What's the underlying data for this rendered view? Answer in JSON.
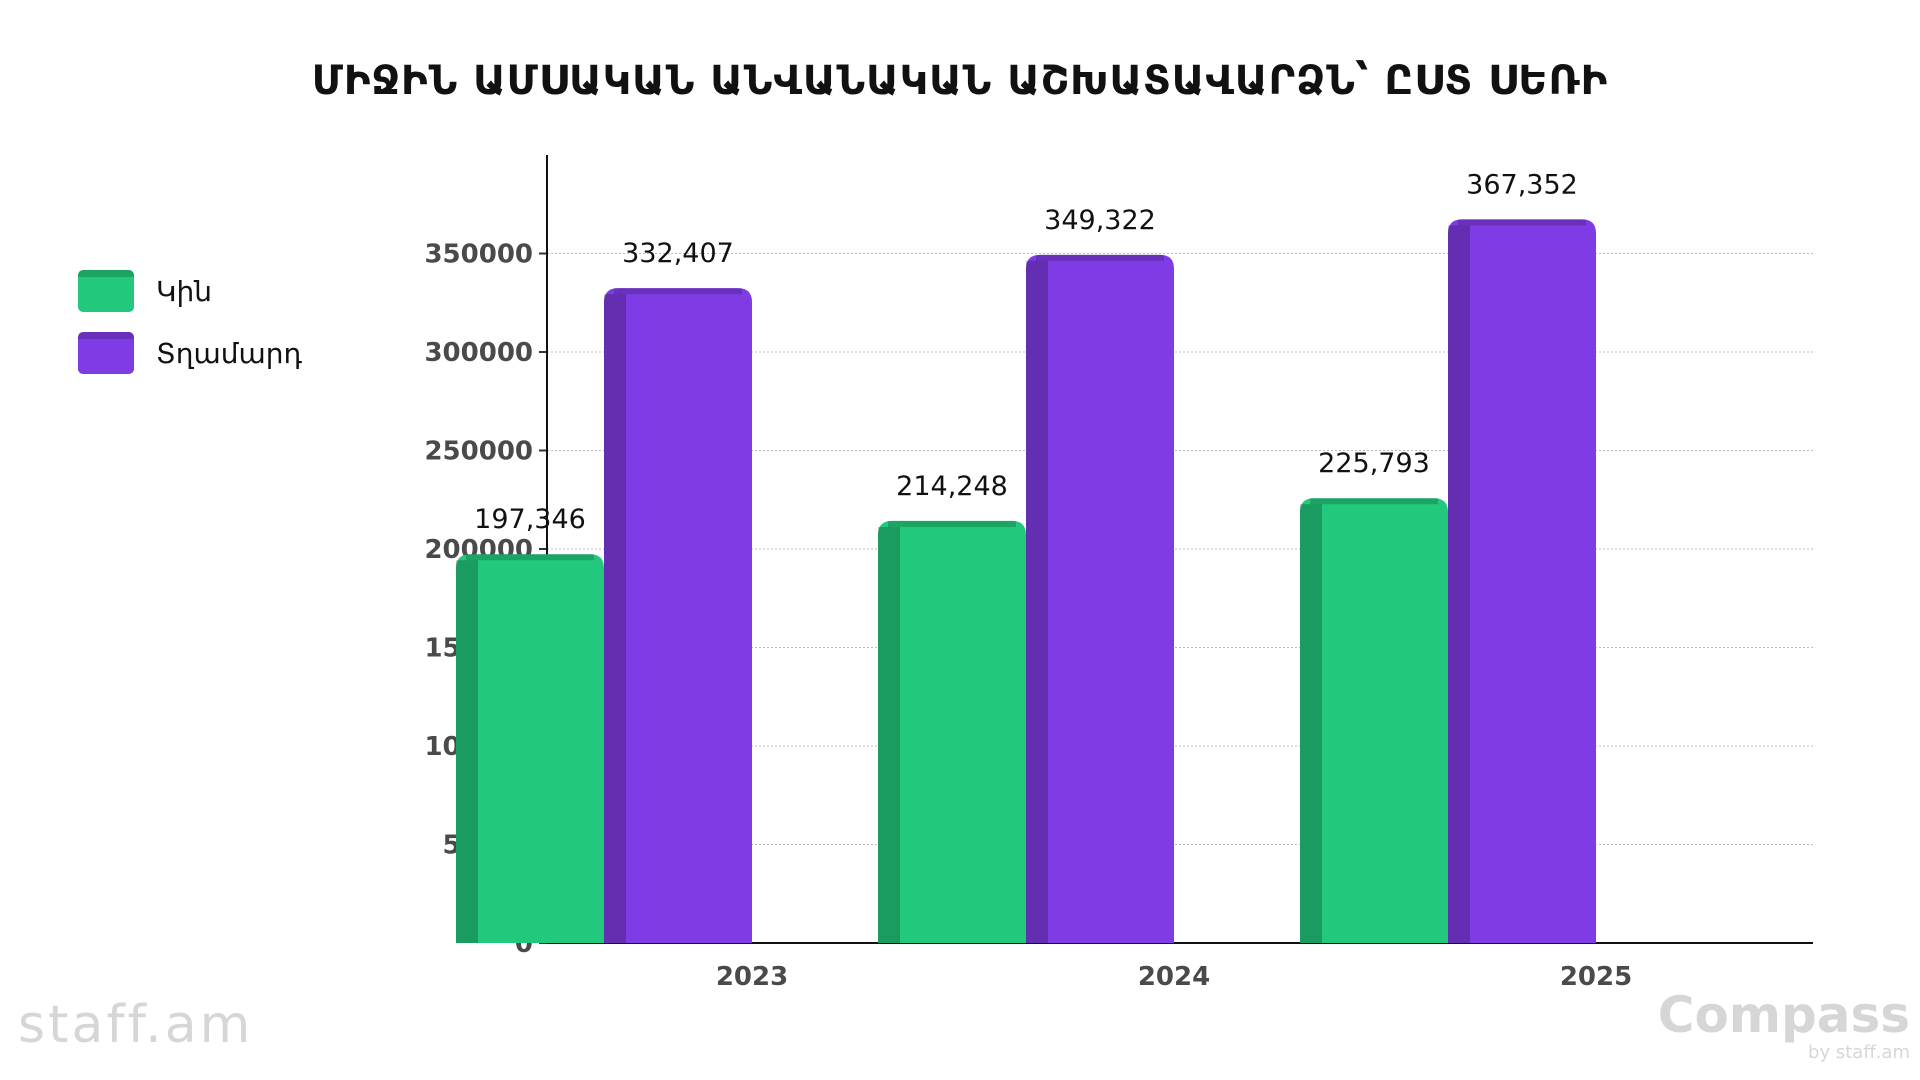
{
  "chart_data": {
    "type": "bar",
    "title": "ՄԻՋԻՆ ԱՄՍԱԿԱՆ ԱՆՎԱՆԱԿԱՆ ԱՇԽԱՏԱՎԱՐՁՆ՝ ԸՍՏ ՍԵՌԻ",
    "categories": [
      "2023",
      "2024",
      "2025"
    ],
    "series": [
      {
        "name": "Կին",
        "color": "#22c87b",
        "values": [
          197346,
          214248,
          225793
        ],
        "labels": [
          "197,346",
          "214,248",
          "225,793"
        ]
      },
      {
        "name": "Տղամարդ",
        "color": "#7f3be4",
        "values": [
          332407,
          349322,
          367352
        ],
        "labels": [
          "332,407",
          "349,322",
          "367,352"
        ]
      }
    ],
    "ylim": [
      0,
      400000
    ],
    "yticks": [
      0,
      50000,
      100000,
      150000,
      200000,
      250000,
      300000,
      350000
    ],
    "ytick_labels": [
      "0",
      "50000",
      "100000",
      "150000",
      "200000",
      "250000",
      "300000",
      "350000"
    ],
    "grid": true,
    "legend": "left",
    "xlabel": "",
    "ylabel": ""
  },
  "watermarks": {
    "left": "staff.am",
    "right_brand": "Compass",
    "right_sub": "by staff.am"
  }
}
